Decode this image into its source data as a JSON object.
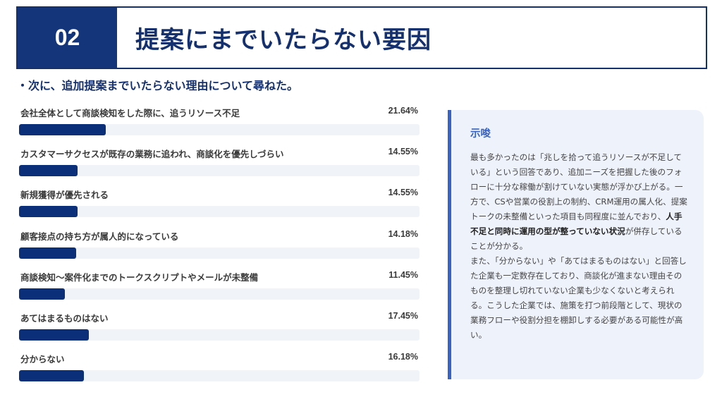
{
  "header": {
    "section_number": "02",
    "title": "提案にまでいたらない要因"
  },
  "subtitle": "・次に、追加提案までいたらない理由について尋ねた。",
  "chart_data": {
    "type": "bar",
    "orientation": "horizontal",
    "title": "提案にまでいたらない要因",
    "subtitle": "次に、追加提案までいたらない理由について尋ねた。",
    "xlabel": "",
    "ylabel": "",
    "xlim": [
      0,
      100
    ],
    "unit": "%",
    "grid": false,
    "legend": null,
    "colors": {
      "bar": "#0b2f78",
      "track": "#f0f3f8"
    },
    "categories": [
      "会社全体として商談検知をした際に、追うリソース不足",
      "カスタマーサクセスが既存の業務に追われ、商談化を優先しづらい",
      "新規獲得が優先される",
      "顧客接点の持ち方が属人的になっている",
      "商談検知〜案件化までのトークスクリプトやメールが未整備",
      "あてはまるものはない",
      "分からない"
    ],
    "values": [
      21.64,
      14.55,
      14.55,
      14.18,
      11.45,
      17.45,
      16.18
    ],
    "value_labels": [
      "21.64%",
      "14.55%",
      "14.55%",
      "14.18%",
      "11.45%",
      "17.45%",
      "16.18%"
    ]
  },
  "insight": {
    "title": "示唆",
    "body_parts": [
      "最も多かったのは「兆しを拾って追うリソースが不足している」という回答であり、追加ニーズを把握した後のフォローに十分な稼働が割けていない実態が浮かび上がる。一方で、CSや営業の役割上の制約、CRM運用の属人化、提案トークの未整備といった項目も同程度に並んでおり、",
      "人手不足と同時に運用の型が整っていない状況",
      "が併存していることが分かる。",
      "また、「分からない」や「あてはまるものはない」と回答した企業も一定数存在しており、商談化が進まない理由そのものを整理し切れていない企業も少なくないと考えられる。こうした企業では、施策を打つ前段階として、現状の業務フローや役割分担を棚卸しする必要がある可能性が高い。"
    ]
  }
}
